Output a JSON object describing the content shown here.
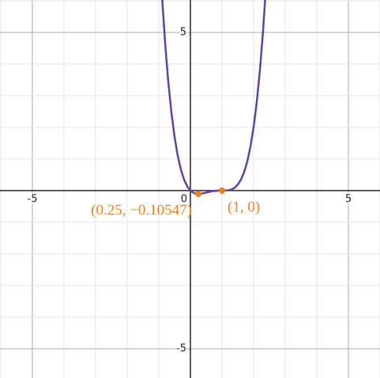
{
  "chart_data": {
    "type": "line",
    "xlim": [
      -6.025,
      6
    ],
    "ylim": [
      -5.925,
      6.025
    ],
    "xticks": [
      -5,
      0,
      5
    ],
    "yticks": [
      -5,
      5
    ],
    "xgrid": [
      -6,
      -5,
      -4,
      -3,
      -2,
      -1,
      1,
      2,
      3,
      4,
      5,
      6
    ],
    "ygrid": [
      -5,
      -4,
      -3,
      -2,
      -1,
      1,
      2,
      3,
      4,
      5,
      6
    ],
    "grid": true,
    "series": [
      {
        "color": "#6042a6",
        "x": [
          -0.9,
          -0.8,
          -0.7,
          -0.6,
          -0.5,
          -0.4,
          -0.3,
          -0.2,
          -0.1,
          0,
          0.1,
          0.2,
          0.3,
          0.4,
          0.5,
          0.6,
          0.7,
          0.8,
          0.9,
          1.0,
          1.1,
          1.2,
          1.3,
          1.4,
          1.5,
          1.6,
          1.7,
          1.8,
          1.9,
          2.0,
          2.1,
          2.2,
          2.3,
          2.4
        ],
        "values": [
          6.173,
          4.666,
          3.439,
          2.458,
          1.688,
          1.098,
          0.659,
          0.346,
          0.133,
          0,
          -0.073,
          -0.102,
          -0.103,
          -0.086,
          -0.063,
          -0.038,
          -0.019,
          -0.006,
          -0.001,
          0,
          0.001,
          0.01,
          0.035,
          0.09,
          0.188,
          0.346,
          0.583,
          0.922,
          1.385,
          2,
          2.795,
          3.802,
          5.053,
          6.586
        ]
      }
    ],
    "points": [
      {
        "x": 0.25,
        "y": -0.10547,
        "label": "(0.25, −0.10547)",
        "color": "#f07f1e"
      },
      {
        "x": 1,
        "y": 0,
        "label": "(1, 0)",
        "color": "#f07f1e"
      }
    ]
  }
}
